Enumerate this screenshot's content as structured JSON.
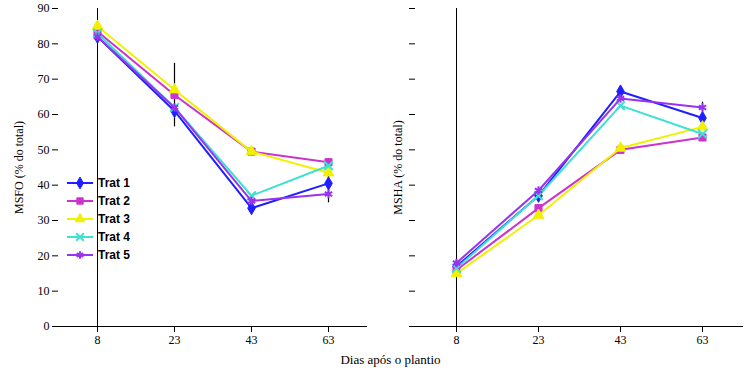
{
  "xlabel": "Dias após o plantio",
  "chart_data": [
    {
      "type": "line",
      "ylabel": "MSFO (% do total)",
      "categories": [
        "8",
        "23",
        "43",
        "63"
      ],
      "ylim": [
        0,
        90
      ],
      "yticks": [
        0,
        10,
        20,
        30,
        40,
        50,
        60,
        70,
        80,
        90
      ],
      "grid": false,
      "legend": "lower left",
      "series": [
        {
          "name": "Trat 1",
          "color": "#1f1fff",
          "marker": "diamond",
          "values": [
            82,
            61,
            33.5,
            40.5
          ],
          "errors": [
            null,
            null,
            1.5,
            3
          ]
        },
        {
          "name": "Trat 2",
          "color": "#cc33cc",
          "marker": "square",
          "values": [
            83.5,
            65.5,
            49.5,
            46.5
          ],
          "errors": [
            null,
            9,
            null,
            1
          ]
        },
        {
          "name": "Trat 3",
          "color": "#f0f000",
          "marker": "triangle",
          "values": [
            85,
            67,
            49.5,
            43.5
          ],
          "errors": [
            null,
            null,
            null,
            null
          ]
        },
        {
          "name": "Trat 4",
          "color": "#40e0d0",
          "marker": "times",
          "values": [
            83,
            62,
            37,
            45.5
          ],
          "errors": [
            null,
            null,
            null,
            null
          ]
        },
        {
          "name": "Trat 5",
          "color": "#9933ee",
          "marker": "asterisk",
          "values": [
            82,
            62,
            35.5,
            37.5
          ],
          "errors": [
            null,
            null,
            1.5,
            2.5
          ]
        }
      ]
    },
    {
      "type": "line",
      "ylabel": "MSHA (% do total)",
      "categories": [
        "8",
        "23",
        "43",
        "63"
      ],
      "ylim": [
        0,
        90
      ],
      "yticks": [
        0,
        10,
        20,
        30,
        40,
        50,
        60,
        70,
        80,
        90
      ],
      "grid": false,
      "tick_labels": "x",
      "series": [
        {
          "name": "Trat 1",
          "color": "#1f1fff",
          "marker": "diamond",
          "values": [
            17,
            37,
            66.5,
            59
          ],
          "errors": [
            null,
            null,
            1.5,
            1.5
          ]
        },
        {
          "name": "Trat 2",
          "color": "#cc33cc",
          "marker": "square",
          "values": [
            16,
            33.5,
            50,
            53.5
          ],
          "errors": [
            null,
            null,
            null,
            null
          ]
        },
        {
          "name": "Trat 3",
          "color": "#f0f000",
          "marker": "triangle",
          "values": [
            15,
            31.5,
            50.5,
            56.5
          ],
          "errors": [
            null,
            null,
            null,
            null
          ]
        },
        {
          "name": "Trat 4",
          "color": "#40e0d0",
          "marker": "times",
          "values": [
            16.5,
            37,
            62.5,
            54.5
          ],
          "errors": [
            null,
            null,
            null,
            null
          ]
        },
        {
          "name": "Trat 5",
          "color": "#9933ee",
          "marker": "asterisk",
          "values": [
            18,
            38.5,
            64.5,
            62
          ],
          "errors": [
            null,
            null,
            null,
            1.5
          ]
        }
      ]
    }
  ]
}
